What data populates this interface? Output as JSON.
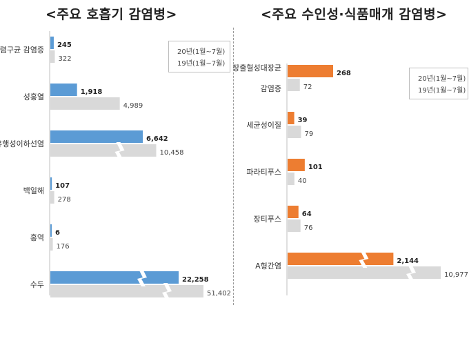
{
  "chart_data": [
    {
      "type": "bar",
      "title": "<주요 호흡기 감염병>",
      "categories": [
        "폐렴구균 감염증",
        "성홍열",
        "유행성이하선염",
        "백일해",
        "홍역",
        "수두"
      ],
      "series": [
        {
          "name": "20년(1월~7월)",
          "values": [
            245,
            1918,
            6642,
            107,
            6,
            22258
          ]
        },
        {
          "name": "19년(1월~7월)",
          "values": [
            322,
            4989,
            10458,
            278,
            176,
            51402
          ]
        }
      ],
      "value_labels": [
        [
          "245",
          "1,918",
          "6,642",
          "107",
          "6",
          "22,258"
        ],
        [
          "322",
          "4,989",
          "10,458",
          "278",
          "176",
          "51,402"
        ]
      ],
      "colors": [
        "#5b9bd5",
        "#d9d9d9"
      ],
      "orientation": "horizontal",
      "axis_break": true,
      "legend_position": "top-right"
    },
    {
      "type": "bar",
      "title": "<주요 수인성·식품매개 감염병>",
      "categories": [
        "장출혈성대장균 감염증",
        "세균성이질",
        "파라티푸스",
        "장티푸스",
        "A형간염"
      ],
      "category_lines": [
        [
          "장출혈성대장균",
          "감염증"
        ],
        [
          "세균성이질"
        ],
        [
          "파라티푸스"
        ],
        [
          "장티푸스"
        ],
        [
          "A형간염"
        ]
      ],
      "series": [
        {
          "name": "20년(1월~7월)",
          "values": [
            268,
            39,
            101,
            64,
            2144
          ]
        },
        {
          "name": "19년(1월~7월)",
          "values": [
            72,
            79,
            40,
            76,
            10977
          ]
        }
      ],
      "value_labels": [
        [
          "268",
          "39",
          "101",
          "64",
          "2,144"
        ],
        [
          "72",
          "79",
          "40",
          "76",
          "10,977"
        ]
      ],
      "colors": [
        "#ed7d31",
        "#d9d9d9"
      ],
      "orientation": "horizontal",
      "axis_break": true,
      "legend_position": "top-right"
    }
  ]
}
